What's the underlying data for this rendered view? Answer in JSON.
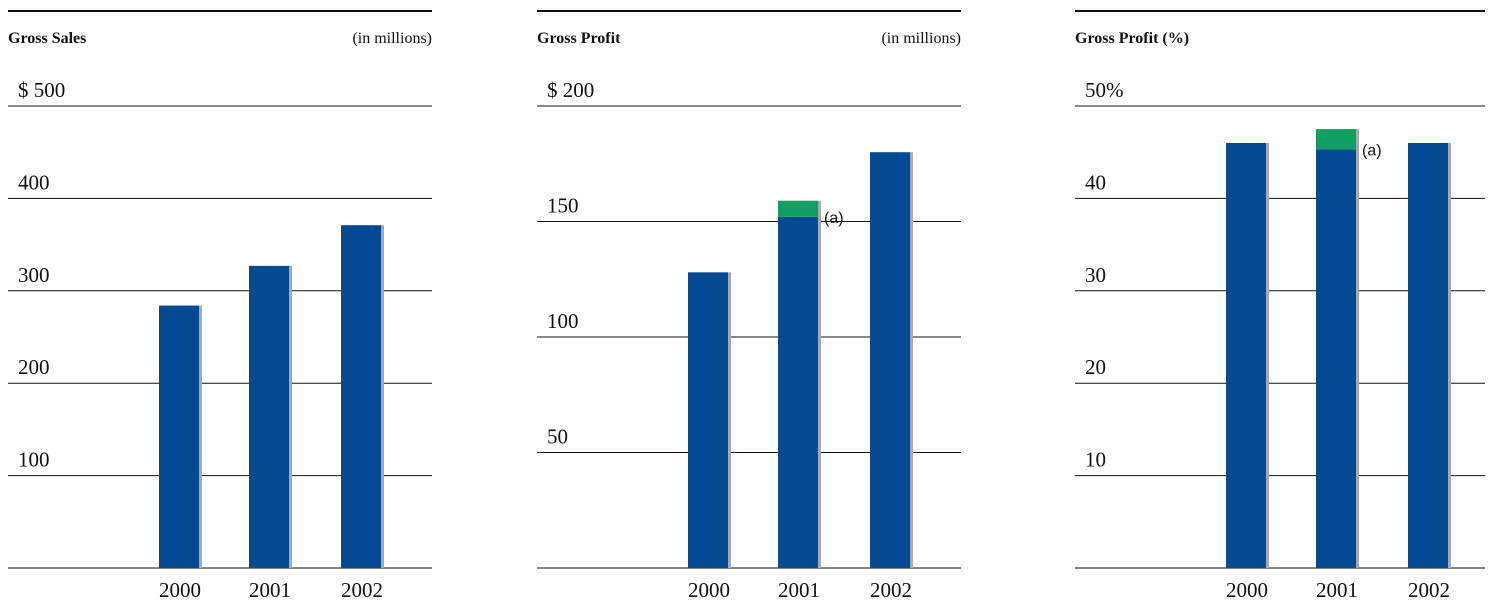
{
  "chart_data": [
    {
      "type": "bar",
      "title": "Gross Sales",
      "unit_note": "(in millions)",
      "categories": [
        "2000",
        "2001",
        "2002"
      ],
      "values": [
        284,
        327,
        371
      ],
      "ylim": [
        0,
        500
      ],
      "ticks": [
        {
          "value": 100,
          "label": "100"
        },
        {
          "value": 200,
          "label": "200"
        },
        {
          "value": 300,
          "label": "300"
        },
        {
          "value": 400,
          "label": "400"
        },
        {
          "value": 500,
          "label": "$ 500"
        }
      ],
      "colors": {
        "bar": "#034a92",
        "shadow": "#a9a9a9",
        "highlight": "#129d63",
        "axis": "#111111"
      }
    },
    {
      "type": "bar",
      "title": "Gross Profit",
      "unit_note": "(in millions)",
      "categories": [
        "2000",
        "2001",
        "2002"
      ],
      "values": [
        128,
        152,
        180
      ],
      "segment_values": [
        0,
        7,
        0
      ],
      "annotation": {
        "text": "(a)",
        "category": "2001"
      },
      "ylim": [
        0,
        200
      ],
      "ticks": [
        {
          "value": 50,
          "label": "50"
        },
        {
          "value": 100,
          "label": "100"
        },
        {
          "value": 150,
          "label": "150"
        },
        {
          "value": 200,
          "label": "$ 200"
        }
      ],
      "colors": {
        "bar": "#034a92",
        "shadow": "#a9a9a9",
        "highlight": "#129d63",
        "axis": "#111111"
      }
    },
    {
      "type": "bar",
      "title": "Gross Profit (%)",
      "unit_note": "",
      "categories": [
        "2000",
        "2001",
        "2002"
      ],
      "values": [
        46,
        45.3,
        46
      ],
      "segment_values": [
        0,
        2.2,
        0
      ],
      "annotation": {
        "text": "(a)",
        "category": "2001"
      },
      "ylim": [
        0,
        50
      ],
      "ticks": [
        {
          "value": 10,
          "label": "10"
        },
        {
          "value": 20,
          "label": "20"
        },
        {
          "value": 30,
          "label": "30"
        },
        {
          "value": 40,
          "label": "40"
        },
        {
          "value": 50,
          "label": "50%"
        }
      ],
      "colors": {
        "bar": "#034a92",
        "shadow": "#a9a9a9",
        "highlight": "#129d63",
        "axis": "#111111"
      }
    }
  ]
}
